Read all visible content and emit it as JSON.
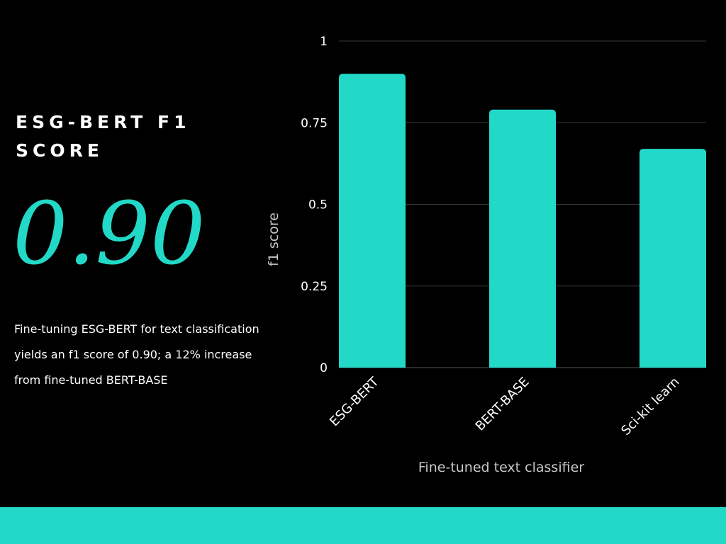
{
  "panel": {
    "title": "ESG-BERT f1 score",
    "big_score": "0.90",
    "description": "Fine-tuning ESG-BERT for text classification yields an f1 score of 0.90; a 12% increase from fine-tuned BERT-BASE"
  },
  "colors": {
    "accent": "#22d9c8",
    "background": "#000000",
    "grid": "#3a3a3a",
    "text": "#ffffff"
  },
  "chart_data": {
    "type": "bar",
    "categories": [
      "ESG-BERT",
      "BERT-BASE",
      "Sci-kit learn"
    ],
    "values": [
      0.9,
      0.79,
      0.67
    ],
    "xlabel": "Fine-tuned text classifier",
    "ylabel": "f1 score",
    "ylim": [
      0,
      1
    ],
    "yticks": [
      0,
      0.25,
      0.5,
      0.75,
      1
    ],
    "ytick_labels": [
      "0",
      "0.25",
      "0.5",
      "0.75",
      "1"
    ],
    "grid": true,
    "legend": "none"
  }
}
